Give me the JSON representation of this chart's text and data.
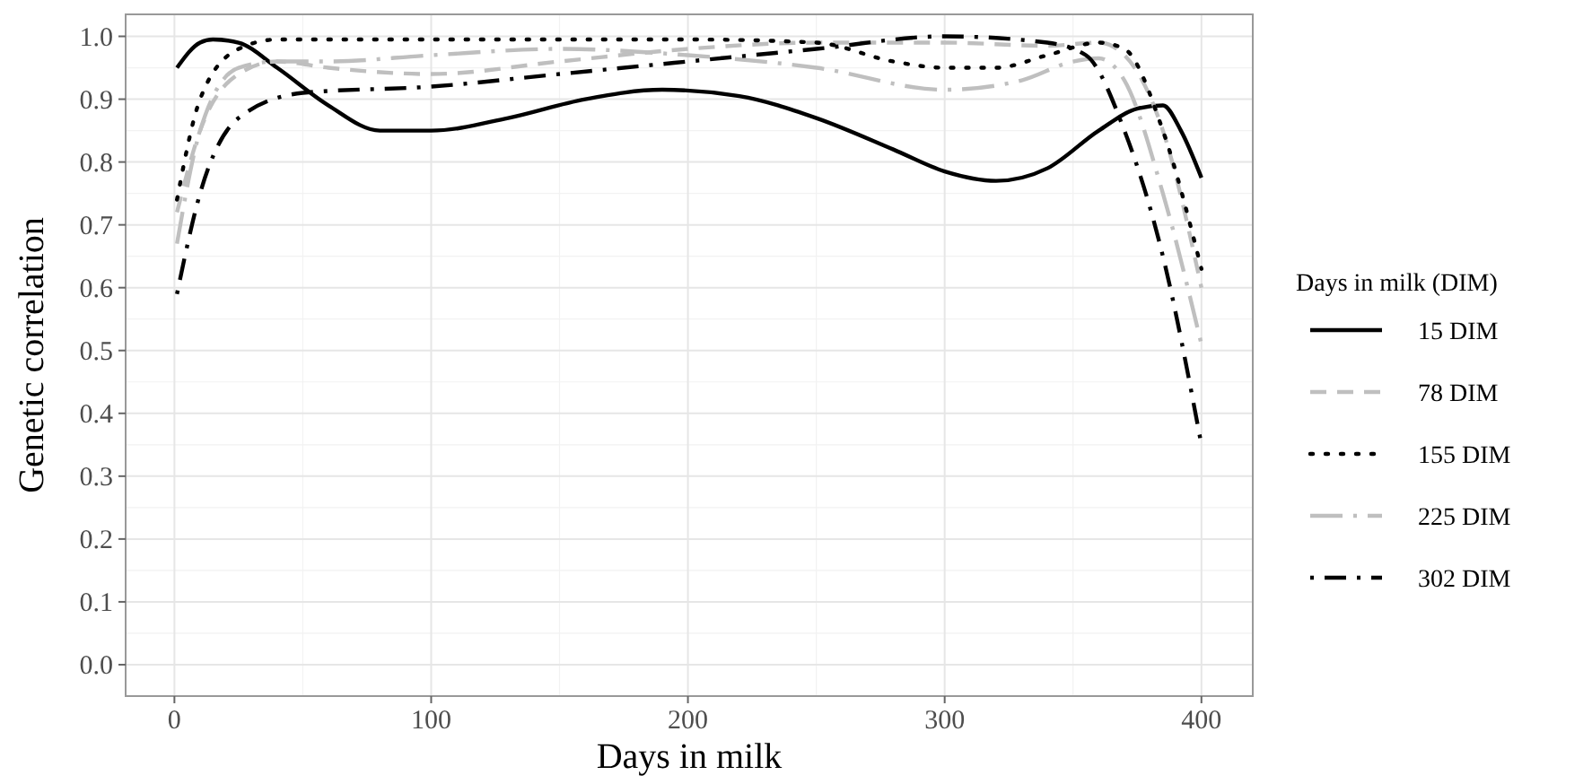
{
  "chart_data": {
    "type": "line",
    "xlabel": "Days in milk",
    "ylabel": "Genetic correlation",
    "legend_title": "Days in milk (DIM)",
    "xlim": [
      -19,
      420
    ],
    "xticks": [
      0,
      100,
      200,
      300,
      400
    ],
    "ylim": [
      -0.05,
      1.035
    ],
    "yticks": [
      {
        "value": 0,
        "label": "0.0"
      },
      0.1,
      0.2,
      0.3,
      0.4,
      0.5,
      0.6,
      0.7,
      0.8,
      0.9,
      {
        "value": 1,
        "label": "1.0"
      }
    ],
    "grid": true,
    "legend": "right",
    "series": [
      {
        "name": "15 DIM",
        "color": "#000000",
        "line_style": "solid",
        "x": [
          1,
          10,
          15,
          25,
          40,
          60,
          80,
          100,
          130,
          160,
          190,
          220,
          250,
          280,
          300,
          320,
          340,
          360,
          375,
          385,
          392,
          400
        ],
        "values": [
          0.95,
          0.99,
          0.995,
          0.99,
          0.95,
          0.89,
          0.85,
          0.85,
          0.87,
          0.9,
          0.915,
          0.905,
          0.87,
          0.82,
          0.785,
          0.77,
          0.79,
          0.85,
          0.885,
          0.89,
          0.85,
          0.775
        ]
      },
      {
        "name": "78 DIM",
        "color": "#bfbfbf",
        "line_style": "dashed",
        "x": [
          1,
          10,
          25,
          40,
          60,
          100,
          150,
          200,
          250,
          300,
          340,
          360,
          370,
          385,
          400
        ],
        "values": [
          0.72,
          0.85,
          0.94,
          0.96,
          0.95,
          0.94,
          0.96,
          0.98,
          0.99,
          0.99,
          0.985,
          0.99,
          0.97,
          0.85,
          0.6
        ]
      },
      {
        "name": "155 DIM",
        "color": "#000000",
        "line_style": "dotted",
        "x": [
          1,
          10,
          25,
          40,
          100,
          200,
          250,
          280,
          300,
          320,
          340,
          360,
          370,
          385,
          400
        ],
        "values": [
          0.74,
          0.9,
          0.98,
          0.995,
          0.995,
          0.995,
          0.99,
          0.96,
          0.95,
          0.95,
          0.97,
          0.99,
          0.98,
          0.85,
          0.63
        ]
      },
      {
        "name": "225 DIM",
        "color": "#bfbfbf",
        "line_style": "longdash",
        "x": [
          1,
          10,
          25,
          40,
          60,
          100,
          150,
          200,
          250,
          300,
          330,
          350,
          360,
          370,
          385,
          400
        ],
        "values": [
          0.67,
          0.85,
          0.95,
          0.96,
          0.96,
          0.97,
          0.98,
          0.97,
          0.95,
          0.915,
          0.93,
          0.96,
          0.965,
          0.93,
          0.75,
          0.51
        ]
      },
      {
        "name": "302 DIM",
        "color": "#000000",
        "line_style": "dotdash",
        "x": [
          1,
          10,
          25,
          50,
          100,
          150,
          200,
          250,
          300,
          340,
          355,
          370,
          385,
          400
        ],
        "values": [
          0.59,
          0.75,
          0.87,
          0.91,
          0.92,
          0.94,
          0.96,
          0.98,
          1.0,
          0.99,
          0.97,
          0.85,
          0.65,
          0.35
        ]
      }
    ]
  }
}
